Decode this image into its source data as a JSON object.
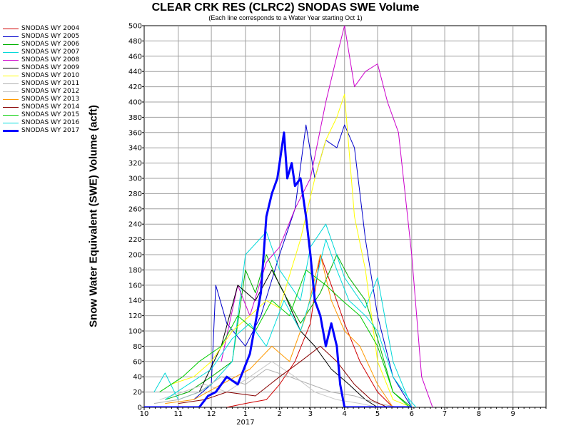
{
  "chart_data": {
    "type": "line",
    "title": "CLEAR CRK RES (CLRC2) SNODAS SWE Volume",
    "subtitle": "(Each line corresponds to a Water Year starting Oct 1)",
    "ylabel": "Snow Water Equivalent (SWE) Volume (acft)",
    "xlabel": "",
    "x_unit": "month of water year (10 = Oct 1, 12 = Dec 1, 1 = Jan 1 2017, 9 = Sep 1)",
    "x_ticks": [
      "10",
      "11",
      "12",
      "1",
      "2",
      "3",
      "4",
      "5",
      "6",
      "7",
      "8",
      "9"
    ],
    "x_year_label": "2017",
    "ylim": [
      0,
      500
    ],
    "y_ticks": [
      "0",
      "20",
      "40",
      "60",
      "80",
      "100",
      "120",
      "140",
      "160",
      "180",
      "200",
      "220",
      "240",
      "260",
      "280",
      "300",
      "320",
      "340",
      "360",
      "380",
      "400",
      "420",
      "440",
      "460",
      "480",
      "500"
    ],
    "grid": true,
    "legend_position": "left-top",
    "series": [
      {
        "name": "SNODAS WY 2004",
        "color": "#d00000",
        "width": 1,
        "points": [
          [
            "12-15",
            0
          ],
          [
            "1-01",
            5
          ],
          [
            "1-20",
            10
          ],
          [
            "2-01",
            30
          ],
          [
            "2-15",
            60
          ],
          [
            "3-01",
            110
          ],
          [
            "3-10",
            200
          ],
          [
            "3-20",
            160
          ],
          [
            "4-01",
            110
          ],
          [
            "4-15",
            60
          ],
          [
            "5-01",
            20
          ],
          [
            "5-15",
            0
          ]
        ]
      },
      {
        "name": "SNODAS WY 2005",
        "color": "#0000cc",
        "width": 1,
        "points": [
          [
            "11-15",
            10
          ],
          [
            "12-01",
            30
          ],
          [
            "12-05",
            160
          ],
          [
            "12-15",
            110
          ],
          [
            "1-01",
            80
          ],
          [
            "1-15",
            120
          ],
          [
            "2-01",
            200
          ],
          [
            "2-15",
            260
          ],
          [
            "2-25",
            370
          ],
          [
            "3-05",
            300
          ],
          [
            "3-15",
            350
          ],
          [
            "3-25",
            340
          ],
          [
            "4-01",
            370
          ],
          [
            "4-10",
            340
          ],
          [
            "4-20",
            220
          ],
          [
            "5-01",
            120
          ],
          [
            "5-15",
            40
          ],
          [
            "6-01",
            0
          ]
        ]
      },
      {
        "name": "SNODAS WY 2006",
        "color": "#00b000",
        "width": 1,
        "points": [
          [
            "10-20",
            10
          ],
          [
            "11-10",
            20
          ],
          [
            "12-01",
            40
          ],
          [
            "12-20",
            60
          ],
          [
            "1-01",
            180
          ],
          [
            "1-10",
            150
          ],
          [
            "1-20",
            200
          ],
          [
            "2-01",
            160
          ],
          [
            "2-20",
            110
          ],
          [
            "3-10",
            150
          ],
          [
            "3-25",
            200
          ],
          [
            "4-05",
            170
          ],
          [
            "4-20",
            140
          ],
          [
            "5-01",
            90
          ],
          [
            "5-15",
            20
          ],
          [
            "6-01",
            0
          ]
        ]
      },
      {
        "name": "SNODAS WY 2007",
        "color": "#00d8d8",
        "width": 1,
        "points": [
          [
            "10-10",
            20
          ],
          [
            "10-20",
            45
          ],
          [
            "11-01",
            10
          ],
          [
            "11-20",
            20
          ],
          [
            "12-01",
            30
          ],
          [
            "12-20",
            60
          ],
          [
            "1-01",
            200
          ],
          [
            "1-20",
            230
          ],
          [
            "2-01",
            180
          ],
          [
            "2-20",
            140
          ],
          [
            "3-01",
            210
          ],
          [
            "3-15",
            240
          ],
          [
            "4-01",
            170
          ],
          [
            "4-20",
            130
          ],
          [
            "5-01",
            170
          ],
          [
            "5-15",
            60
          ],
          [
            "6-01",
            0
          ]
        ]
      },
      {
        "name": "SNODAS WY 2008",
        "color": "#cc00cc",
        "width": 1,
        "points": [
          [
            "12-10",
            60
          ],
          [
            "12-25",
            160
          ],
          [
            "1-05",
            120
          ],
          [
            "1-20",
            190
          ],
          [
            "2-01",
            210
          ],
          [
            "2-15",
            260
          ],
          [
            "3-01",
            300
          ],
          [
            "3-15",
            400
          ],
          [
            "3-25",
            460
          ],
          [
            "4-01",
            500
          ],
          [
            "4-10",
            420
          ],
          [
            "4-20",
            440
          ],
          [
            "5-01",
            450
          ],
          [
            "5-10",
            400
          ],
          [
            "5-20",
            360
          ],
          [
            "6-01",
            200
          ],
          [
            "6-10",
            40
          ],
          [
            "6-20",
            0
          ]
        ]
      },
      {
        "name": "SNODAS WY 2009",
        "color": "#000000",
        "width": 1,
        "points": [
          [
            "11-20",
            20
          ],
          [
            "12-10",
            80
          ],
          [
            "12-25",
            160
          ],
          [
            "1-10",
            140
          ],
          [
            "1-25",
            180
          ],
          [
            "2-05",
            150
          ],
          [
            "2-20",
            100
          ],
          [
            "3-05",
            80
          ],
          [
            "3-20",
            50
          ],
          [
            "4-05",
            30
          ],
          [
            "4-20",
            10
          ],
          [
            "5-01",
            0
          ]
        ]
      },
      {
        "name": "SNODAS WY 2010",
        "color": "#ffff00",
        "width": 1,
        "points": [
          [
            "10-25",
            30
          ],
          [
            "11-15",
            40
          ],
          [
            "12-01",
            60
          ],
          [
            "12-20",
            100
          ],
          [
            "1-05",
            120
          ],
          [
            "1-20",
            140
          ],
          [
            "2-01",
            130
          ],
          [
            "2-20",
            220
          ],
          [
            "3-05",
            300
          ],
          [
            "3-15",
            350
          ],
          [
            "3-25",
            380
          ],
          [
            "4-01",
            410
          ],
          [
            "4-10",
            250
          ],
          [
            "4-20",
            180
          ],
          [
            "5-01",
            60
          ],
          [
            "5-15",
            10
          ],
          [
            "6-01",
            0
          ]
        ]
      },
      {
        "name": "SNODAS WY 2011",
        "color": "#b0b0b0",
        "width": 1,
        "points": [
          [
            "10-10",
            5
          ],
          [
            "11-01",
            10
          ],
          [
            "11-20",
            20
          ],
          [
            "12-10",
            40
          ],
          [
            "1-01",
            30
          ],
          [
            "1-20",
            50
          ],
          [
            "2-10",
            40
          ],
          [
            "3-01",
            30
          ],
          [
            "3-20",
            20
          ],
          [
            "4-10",
            15
          ],
          [
            "5-01",
            5
          ],
          [
            "5-20",
            0
          ]
        ]
      },
      {
        "name": "SNODAS WY 2012",
        "color": "#c8c8c8",
        "width": 1,
        "points": [
          [
            "10-15",
            10
          ],
          [
            "11-05",
            20
          ],
          [
            "11-25",
            30
          ],
          [
            "12-15",
            20
          ],
          [
            "1-05",
            40
          ],
          [
            "1-25",
            60
          ],
          [
            "2-15",
            40
          ],
          [
            "3-05",
            20
          ],
          [
            "3-25",
            10
          ],
          [
            "4-15",
            5
          ],
          [
            "5-01",
            0
          ]
        ]
      },
      {
        "name": "SNODAS WY 2013",
        "color": "#ff9900",
        "width": 1,
        "points": [
          [
            "10-20",
            5
          ],
          [
            "11-15",
            10
          ],
          [
            "12-10",
            30
          ],
          [
            "1-05",
            50
          ],
          [
            "1-25",
            80
          ],
          [
            "2-10",
            60
          ],
          [
            "2-25",
            120
          ],
          [
            "3-10",
            200
          ],
          [
            "3-20",
            140
          ],
          [
            "4-01",
            100
          ],
          [
            "4-15",
            80
          ],
          [
            "5-01",
            30
          ],
          [
            "5-15",
            0
          ]
        ]
      },
      {
        "name": "SNODAS WY 2014",
        "color": "#880000",
        "width": 1,
        "points": [
          [
            "11-01",
            5
          ],
          [
            "11-25",
            10
          ],
          [
            "12-15",
            20
          ],
          [
            "1-10",
            15
          ],
          [
            "2-01",
            40
          ],
          [
            "2-20",
            60
          ],
          [
            "3-10",
            80
          ],
          [
            "3-25",
            60
          ],
          [
            "4-10",
            30
          ],
          [
            "4-25",
            10
          ],
          [
            "5-10",
            0
          ]
        ]
      },
      {
        "name": "SNODAS WY 2015",
        "color": "#00cc00",
        "width": 1,
        "points": [
          [
            "10-15",
            20
          ],
          [
            "11-05",
            40
          ],
          [
            "11-20",
            60
          ],
          [
            "12-10",
            80
          ],
          [
            "12-25",
            120
          ],
          [
            "1-10",
            100
          ],
          [
            "1-25",
            140
          ],
          [
            "2-10",
            120
          ],
          [
            "2-25",
            180
          ],
          [
            "3-15",
            160
          ],
          [
            "3-30",
            140
          ],
          [
            "4-15",
            120
          ],
          [
            "5-01",
            80
          ],
          [
            "5-15",
            20
          ],
          [
            "5-30",
            0
          ]
        ]
      },
      {
        "name": "SNODAS WY 2016",
        "color": "#00dddd",
        "width": 1,
        "points": [
          [
            "10-20",
            10
          ],
          [
            "11-10",
            30
          ],
          [
            "12-01",
            50
          ],
          [
            "12-20",
            90
          ],
          [
            "1-05",
            110
          ],
          [
            "1-20",
            80
          ],
          [
            "2-05",
            140
          ],
          [
            "2-20",
            100
          ],
          [
            "3-05",
            160
          ],
          [
            "3-15",
            220
          ],
          [
            "3-25",
            180
          ],
          [
            "4-05",
            140
          ],
          [
            "4-20",
            120
          ],
          [
            "5-01",
            100
          ],
          [
            "5-15",
            40
          ],
          [
            "5-30",
            10
          ],
          [
            "6-05",
            0
          ]
        ]
      },
      {
        "name": "SNODAS WY 2017",
        "color": "#0000ff",
        "width": 3,
        "points": [
          [
            "10-01",
            0
          ],
          [
            "11-20",
            0
          ],
          [
            "11-28",
            15
          ],
          [
            "12-05",
            20
          ],
          [
            "12-15",
            40
          ],
          [
            "12-25",
            30
          ],
          [
            "1-05",
            70
          ],
          [
            "1-15",
            150
          ],
          [
            "1-20",
            250
          ],
          [
            "1-25",
            280
          ],
          [
            "1-30",
            300
          ],
          [
            "2-05",
            360
          ],
          [
            "2-08",
            300
          ],
          [
            "2-12",
            320
          ],
          [
            "2-15",
            290
          ],
          [
            "2-20",
            300
          ],
          [
            "2-25",
            250
          ],
          [
            "3-01",
            200
          ],
          [
            "3-05",
            140
          ],
          [
            "3-10",
            120
          ],
          [
            "3-15",
            80
          ],
          [
            "3-20",
            110
          ],
          [
            "3-25",
            80
          ],
          [
            "3-28",
            30
          ],
          [
            "4-01",
            0
          ],
          [
            "6-01",
            0
          ]
        ]
      }
    ]
  }
}
